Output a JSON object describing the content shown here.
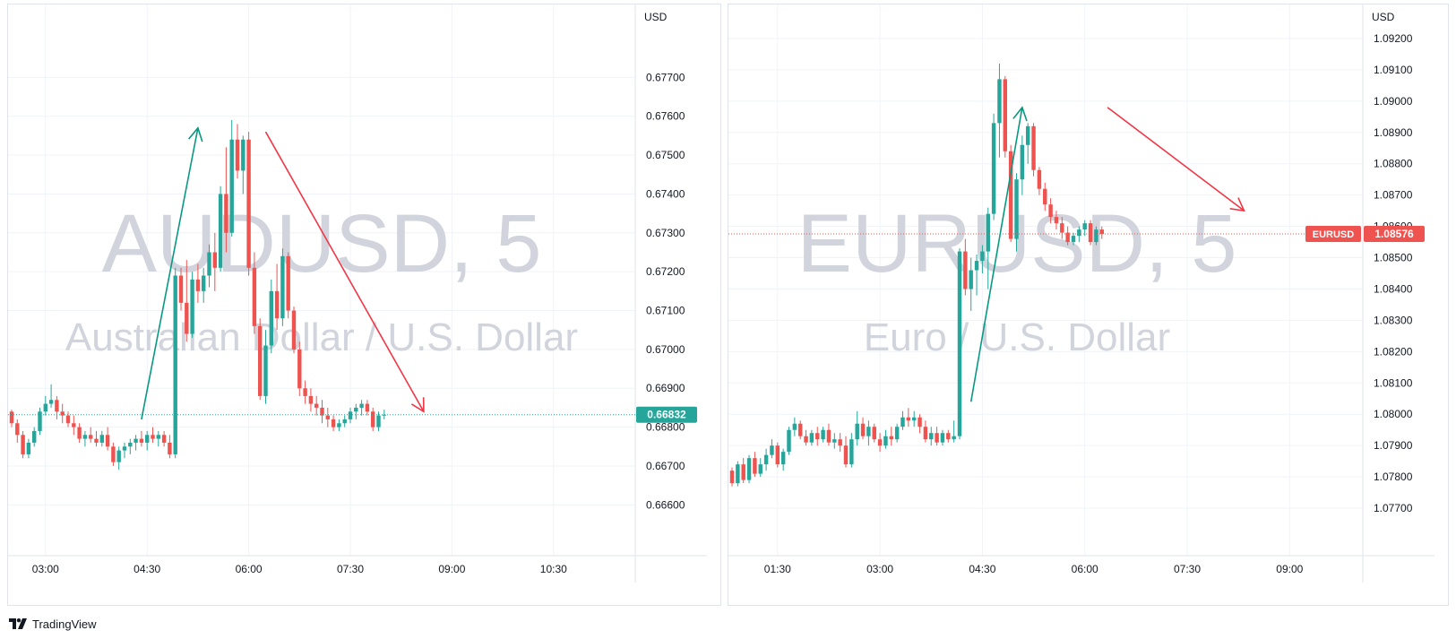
{
  "colors": {
    "up": "#26a69a",
    "down": "#ef5350",
    "grid": "#f0f3fa",
    "axis_text": "#131722",
    "watermark": "#d1d4dc",
    "annotation_up": "#089981",
    "annotation_down": "#f23645",
    "price_tag_aud": "#26a69a",
    "price_tag_eur": "#ef5350"
  },
  "footer": {
    "brand": "TradingView"
  },
  "chart_data": [
    {
      "type": "candlestick",
      "symbol": "AUDUSD",
      "interval": "5",
      "watermark_title": "AUDUSD, 5",
      "watermark_subtitle": "Australian Dollar / U.S. Dollar",
      "currency": "USD",
      "ylim": [
        0.6655,
        0.678
      ],
      "y_ticks": [
        "0.67700",
        "0.67600",
        "0.67500",
        "0.67400",
        "0.67300",
        "0.67200",
        "0.67100",
        "0.67000",
        "0.66900",
        "0.66800",
        "0.66700",
        "0.66600"
      ],
      "time_ticks": [
        "03:00",
        "04:30",
        "06:00",
        "07:30",
        "09:00",
        "10:30"
      ],
      "time_tick_index": [
        6,
        24,
        42,
        60,
        78,
        96
      ],
      "x_slots": 110,
      "last_price": "0.66832",
      "last_value": 0.66832,
      "arrows": [
        {
          "direction": "up",
          "from": [
            23,
            0.6682
          ],
          "to": [
            33,
            0.6757
          ]
        },
        {
          "direction": "down",
          "from": [
            45,
            0.6756
          ],
          "to": [
            73,
            0.6684
          ]
        }
      ],
      "ohlc": [
        [
          0.6684,
          0.66845,
          0.668,
          0.6681
        ],
        [
          0.6681,
          0.6682,
          0.6676,
          0.6678
        ],
        [
          0.6678,
          0.6679,
          0.6672,
          0.6673
        ],
        [
          0.6673,
          0.6677,
          0.6672,
          0.6676
        ],
        [
          0.6676,
          0.668,
          0.6675,
          0.6679
        ],
        [
          0.6679,
          0.6685,
          0.6678,
          0.6684
        ],
        [
          0.6684,
          0.6688,
          0.6683,
          0.6686
        ],
        [
          0.6686,
          0.6691,
          0.6685,
          0.6687
        ],
        [
          0.6687,
          0.6688,
          0.6682,
          0.6684
        ],
        [
          0.6684,
          0.6686,
          0.6681,
          0.6683
        ],
        [
          0.6683,
          0.6684,
          0.668,
          0.6681
        ],
        [
          0.6681,
          0.6683,
          0.6678,
          0.668
        ],
        [
          0.668,
          0.6681,
          0.6676,
          0.6677
        ],
        [
          0.6677,
          0.6679,
          0.6675,
          0.6678
        ],
        [
          0.6678,
          0.668,
          0.6676,
          0.6677
        ],
        [
          0.6677,
          0.6679,
          0.6675,
          0.6676
        ],
        [
          0.6676,
          0.6679,
          0.6675,
          0.6678
        ],
        [
          0.6678,
          0.668,
          0.6674,
          0.6675
        ],
        [
          0.6675,
          0.6676,
          0.667,
          0.6671
        ],
        [
          0.6671,
          0.6675,
          0.6669,
          0.6674
        ],
        [
          0.6674,
          0.6676,
          0.6672,
          0.6675
        ],
        [
          0.6675,
          0.6677,
          0.6673,
          0.6676
        ],
        [
          0.6676,
          0.6678,
          0.6674,
          0.6677
        ],
        [
          0.6677,
          0.6679,
          0.6675,
          0.6676
        ],
        [
          0.6676,
          0.6679,
          0.6674,
          0.6678
        ],
        [
          0.6678,
          0.668,
          0.6676,
          0.6677
        ],
        [
          0.6677,
          0.6679,
          0.6675,
          0.6678
        ],
        [
          0.6678,
          0.6679,
          0.6675,
          0.6676
        ],
        [
          0.6676,
          0.6678,
          0.6672,
          0.6673
        ],
        [
          0.6673,
          0.6721,
          0.6672,
          0.6719
        ],
        [
          0.6719,
          0.6721,
          0.671,
          0.6712
        ],
        [
          0.6712,
          0.6723,
          0.6702,
          0.6704
        ],
        [
          0.6704,
          0.672,
          0.6703,
          0.6718
        ],
        [
          0.6718,
          0.6722,
          0.6712,
          0.6715
        ],
        [
          0.6715,
          0.6721,
          0.6712,
          0.6719
        ],
        [
          0.6719,
          0.6727,
          0.6716,
          0.6725
        ],
        [
          0.6725,
          0.673,
          0.6715,
          0.6721
        ],
        [
          0.6721,
          0.6742,
          0.672,
          0.674
        ],
        [
          0.674,
          0.6752,
          0.6725,
          0.673
        ],
        [
          0.673,
          0.6759,
          0.6729,
          0.6754
        ],
        [
          0.6754,
          0.6758,
          0.6744,
          0.6746
        ],
        [
          0.6746,
          0.6755,
          0.674,
          0.6754
        ],
        [
          0.6754,
          0.6756,
          0.6719,
          0.6721
        ],
        [
          0.6721,
          0.6725,
          0.6704,
          0.6706
        ],
        [
          0.6706,
          0.6708,
          0.6687,
          0.6688
        ],
        [
          0.6688,
          0.6705,
          0.6686,
          0.6701
        ],
        [
          0.6701,
          0.6718,
          0.6699,
          0.6715
        ],
        [
          0.6715,
          0.6722,
          0.6705,
          0.6708
        ],
        [
          0.6708,
          0.6726,
          0.6706,
          0.6724
        ],
        [
          0.6724,
          0.6725,
          0.6708,
          0.671
        ],
        [
          0.671,
          0.6711,
          0.6699,
          0.67
        ],
        [
          0.67,
          0.6702,
          0.6688,
          0.669
        ],
        [
          0.669,
          0.6692,
          0.6686,
          0.6688
        ],
        [
          0.6688,
          0.669,
          0.6684,
          0.6686
        ],
        [
          0.6686,
          0.6688,
          0.6683,
          0.6685
        ],
        [
          0.6685,
          0.6687,
          0.6681,
          0.6683
        ],
        [
          0.6683,
          0.6685,
          0.668,
          0.6682
        ],
        [
          0.6682,
          0.6683,
          0.6679,
          0.668
        ],
        [
          0.668,
          0.6682,
          0.6679,
          0.6681
        ],
        [
          0.6681,
          0.6683,
          0.668,
          0.6682
        ],
        [
          0.6682,
          0.6685,
          0.6681,
          0.6684
        ],
        [
          0.6684,
          0.6686,
          0.6682,
          0.6685
        ],
        [
          0.6685,
          0.6687,
          0.6683,
          0.6686
        ],
        [
          0.6686,
          0.6687,
          0.6683,
          0.6684
        ],
        [
          0.6684,
          0.6685,
          0.6679,
          0.668
        ],
        [
          0.668,
          0.6684,
          0.6679,
          0.6683
        ],
        [
          0.6683,
          0.66845,
          0.6682,
          0.66832
        ]
      ]
    },
    {
      "type": "candlestick",
      "symbol": "EURUSD",
      "interval": "5",
      "watermark_title": "EURUSD, 5",
      "watermark_subtitle": "Euro / U.S. Dollar",
      "currency": "USD",
      "ylim": [
        1.0762,
        1.0922
      ],
      "y_ticks": [
        "1.09200",
        "1.09100",
        "1.09000",
        "1.08900",
        "1.08800",
        "1.08700",
        "1.08600",
        "1.08500",
        "1.08400",
        "1.08300",
        "1.08200",
        "1.08100",
        "1.08000",
        "1.07900",
        "1.07800",
        "1.07700"
      ],
      "time_ticks": [
        "01:30",
        "03:00",
        "04:30",
        "06:00",
        "07:30",
        "09:00"
      ],
      "time_tick_index": [
        8,
        26,
        44,
        62,
        80,
        98
      ],
      "x_slots": 110,
      "last_price": "1.08576",
      "last_value": 1.08576,
      "price_tag_symbol": "EURUSD",
      "arrows": [
        {
          "direction": "up",
          "from": [
            42,
            1.0804
          ],
          "to": [
            51,
            1.0898
          ]
        },
        {
          "direction": "down",
          "from": [
            66,
            1.0898
          ],
          "to": [
            90,
            1.0865
          ]
        }
      ],
      "ohlc": [
        [
          1.0782,
          1.0783,
          1.0777,
          1.0778
        ],
        [
          1.0778,
          1.0785,
          1.0777,
          1.0784
        ],
        [
          1.0784,
          1.0786,
          1.0778,
          1.0779
        ],
        [
          1.0779,
          1.0787,
          1.0778,
          1.0786
        ],
        [
          1.0786,
          1.0788,
          1.078,
          1.0781
        ],
        [
          1.0781,
          1.0786,
          1.078,
          1.0784
        ],
        [
          1.0784,
          1.0789,
          1.0782,
          1.0787
        ],
        [
          1.0787,
          1.0792,
          1.0786,
          1.079
        ],
        [
          1.079,
          1.0791,
          1.0783,
          1.0784
        ],
        [
          1.0784,
          1.0789,
          1.0782,
          1.0788
        ],
        [
          1.0788,
          1.0796,
          1.0787,
          1.0795
        ],
        [
          1.0795,
          1.0799,
          1.0793,
          1.0797
        ],
        [
          1.0797,
          1.0798,
          1.0792,
          1.0793
        ],
        [
          1.0793,
          1.0795,
          1.079,
          1.0791
        ],
        [
          1.0791,
          1.0795,
          1.079,
          1.0794
        ],
        [
          1.0794,
          1.0796,
          1.079,
          1.0792
        ],
        [
          1.0792,
          1.0796,
          1.0791,
          1.0795
        ],
        [
          1.0795,
          1.0797,
          1.079,
          1.0791
        ],
        [
          1.0791,
          1.0794,
          1.0789,
          1.0792
        ],
        [
          1.0792,
          1.0794,
          1.0788,
          1.079
        ],
        [
          1.079,
          1.0793,
          1.0783,
          1.0784
        ],
        [
          1.0784,
          1.0794,
          1.0783,
          1.0792
        ],
        [
          1.0792,
          1.0801,
          1.079,
          1.0797
        ],
        [
          1.0797,
          1.0799,
          1.0792,
          1.0793
        ],
        [
          1.0793,
          1.0798,
          1.079,
          1.0796
        ],
        [
          1.0796,
          1.0797,
          1.0791,
          1.0792
        ],
        [
          1.0792,
          1.0794,
          1.0788,
          1.079
        ],
        [
          1.079,
          1.0795,
          1.0789,
          1.0793
        ],
        [
          1.0793,
          1.0796,
          1.079,
          1.0792
        ],
        [
          1.0792,
          1.0797,
          1.0791,
          1.0796
        ],
        [
          1.0796,
          1.0801,
          1.0795,
          1.0799
        ],
        [
          1.0799,
          1.0802,
          1.0796,
          1.0798
        ],
        [
          1.0798,
          1.0801,
          1.0796,
          1.0799
        ],
        [
          1.0799,
          1.08,
          1.0794,
          1.0796
        ],
        [
          1.0796,
          1.0798,
          1.0791,
          1.0792
        ],
        [
          1.0792,
          1.0796,
          1.079,
          1.0794
        ],
        [
          1.0794,
          1.0796,
          1.079,
          1.0791
        ],
        [
          1.0791,
          1.0795,
          1.079,
          1.0794
        ],
        [
          1.0794,
          1.0795,
          1.0791,
          1.0792
        ],
        [
          1.0792,
          1.0798,
          1.0791,
          1.0793
        ],
        [
          1.0793,
          1.0853,
          1.0792,
          1.0852
        ],
        [
          1.0852,
          1.0856,
          1.0838,
          1.084
        ],
        [
          1.084,
          1.085,
          1.0833,
          1.0846
        ],
        [
          1.0846,
          1.0851,
          1.0838,
          1.0849
        ],
        [
          1.0849,
          1.0854,
          1.0845,
          1.0852
        ],
        [
          1.0852,
          1.0866,
          1.084,
          1.0864
        ],
        [
          1.0864,
          1.0896,
          1.0862,
          1.0893
        ],
        [
          1.0893,
          1.0912,
          1.0882,
          1.0907
        ],
        [
          1.0907,
          1.0908,
          1.0882,
          1.0884
        ],
        [
          1.0884,
          1.0886,
          1.0855,
          1.0856
        ],
        [
          1.0856,
          1.0877,
          1.0852,
          1.0875
        ],
        [
          1.0875,
          1.0889,
          1.087,
          1.0886
        ],
        [
          1.0886,
          1.0893,
          1.088,
          1.0892
        ],
        [
          1.0892,
          1.0893,
          1.0876,
          1.0878
        ],
        [
          1.0878,
          1.0879,
          1.087,
          1.0872
        ],
        [
          1.0872,
          1.0874,
          1.0865,
          1.0867
        ],
        [
          1.0867,
          1.0869,
          1.0861,
          1.0863
        ],
        [
          1.0863,
          1.0865,
          1.0859,
          1.0861
        ],
        [
          1.0861,
          1.0863,
          1.0856,
          1.0858
        ],
        [
          1.0858,
          1.086,
          1.0854,
          1.0855
        ],
        [
          1.0855,
          1.0858,
          1.0854,
          1.0857
        ],
        [
          1.0857,
          1.086,
          1.0855,
          1.0859
        ],
        [
          1.0859,
          1.0862,
          1.0857,
          1.0861
        ],
        [
          1.0861,
          1.0862,
          1.0854,
          1.0855
        ],
        [
          1.0855,
          1.086,
          1.0854,
          1.0859
        ],
        [
          1.0859,
          1.086,
          1.0856,
          1.08576
        ]
      ]
    }
  ]
}
